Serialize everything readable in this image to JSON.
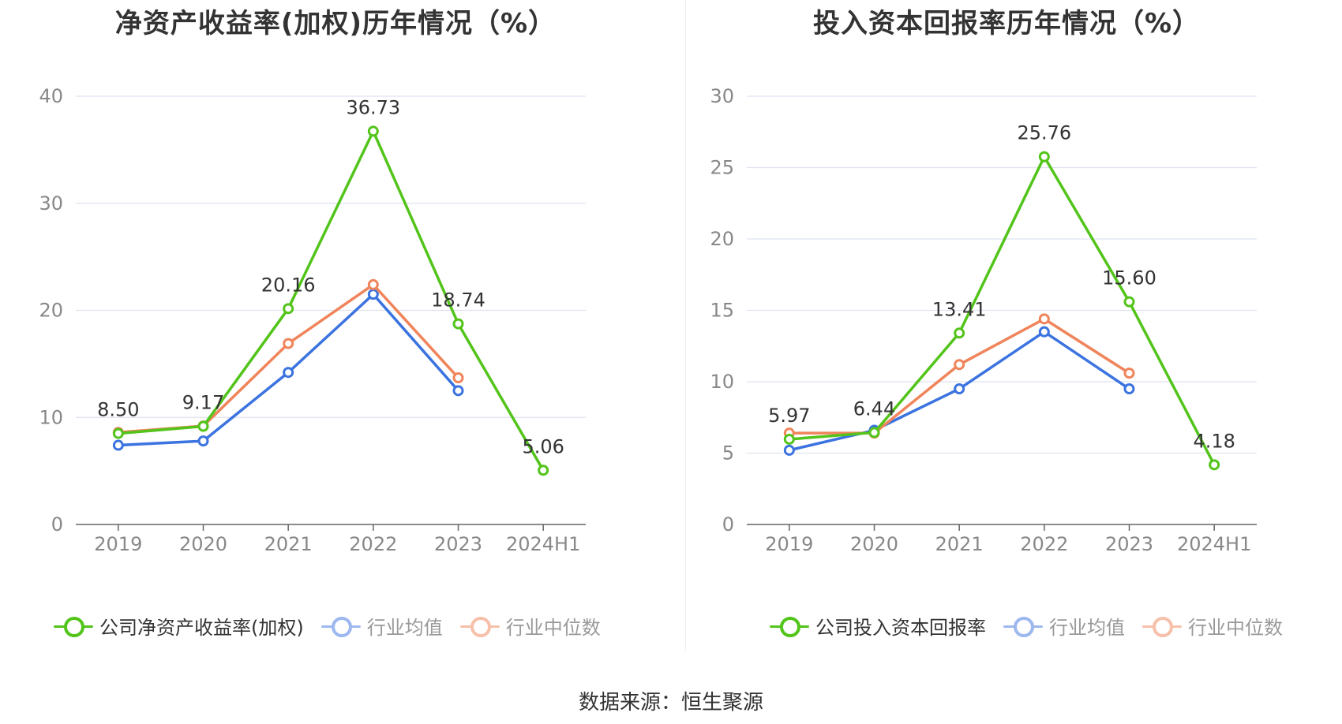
{
  "colors": {
    "company": "#52c41a",
    "average": "#3b73e0",
    "median": "#f0845b",
    "grid": "#dfe3f0",
    "axis": "#666666",
    "text": "#333333",
    "tick": "#888888"
  },
  "chart_data": [
    {
      "type": "line",
      "title": "净资产收益率(加权)历年情况（%）",
      "categories": [
        "2019",
        "2020",
        "2021",
        "2022",
        "2023",
        "2024H1"
      ],
      "yticks": [
        "0",
        "10",
        "20",
        "30",
        "40"
      ],
      "ylim": [
        0,
        40
      ],
      "grid": true,
      "legend_position": "bottom",
      "series": [
        {
          "name": "公司净资产收益率(加权)",
          "color": "#52c41a",
          "values": [
            8.5,
            9.17,
            20.16,
            36.73,
            18.74,
            5.06
          ],
          "labels": [
            "8.50",
            "9.17",
            "20.16",
            "36.73",
            "18.74",
            "5.06"
          ]
        },
        {
          "name": "行业均值",
          "color": "#3b73e0",
          "values": [
            7.4,
            7.8,
            14.2,
            21.5,
            12.5,
            null
          ]
        },
        {
          "name": "行业中位数",
          "color": "#f0845b",
          "values": [
            8.6,
            9.2,
            16.9,
            22.4,
            13.7,
            null
          ]
        }
      ]
    },
    {
      "type": "line",
      "title": "投入资本回报率历年情况（%）",
      "categories": [
        "2019",
        "2020",
        "2021",
        "2022",
        "2023",
        "2024H1"
      ],
      "yticks": [
        "0",
        "5",
        "10",
        "15",
        "20",
        "25",
        "30"
      ],
      "ylim": [
        0,
        30
      ],
      "grid": true,
      "legend_position": "bottom",
      "series": [
        {
          "name": "公司投入资本回报率",
          "color": "#52c41a",
          "values": [
            5.97,
            6.44,
            13.41,
            25.76,
            15.6,
            4.18
          ],
          "labels": [
            "5.97",
            "6.44",
            "13.41",
            "25.76",
            "15.60",
            "4.18"
          ]
        },
        {
          "name": "行业均值",
          "color": "#3b73e0",
          "values": [
            5.2,
            6.6,
            9.5,
            13.5,
            9.5,
            null
          ]
        },
        {
          "name": "行业中位数",
          "color": "#f0845b",
          "values": [
            6.4,
            6.4,
            11.2,
            14.4,
            10.6,
            null
          ]
        }
      ]
    }
  ],
  "source_text": "数据来源：恒生聚源"
}
